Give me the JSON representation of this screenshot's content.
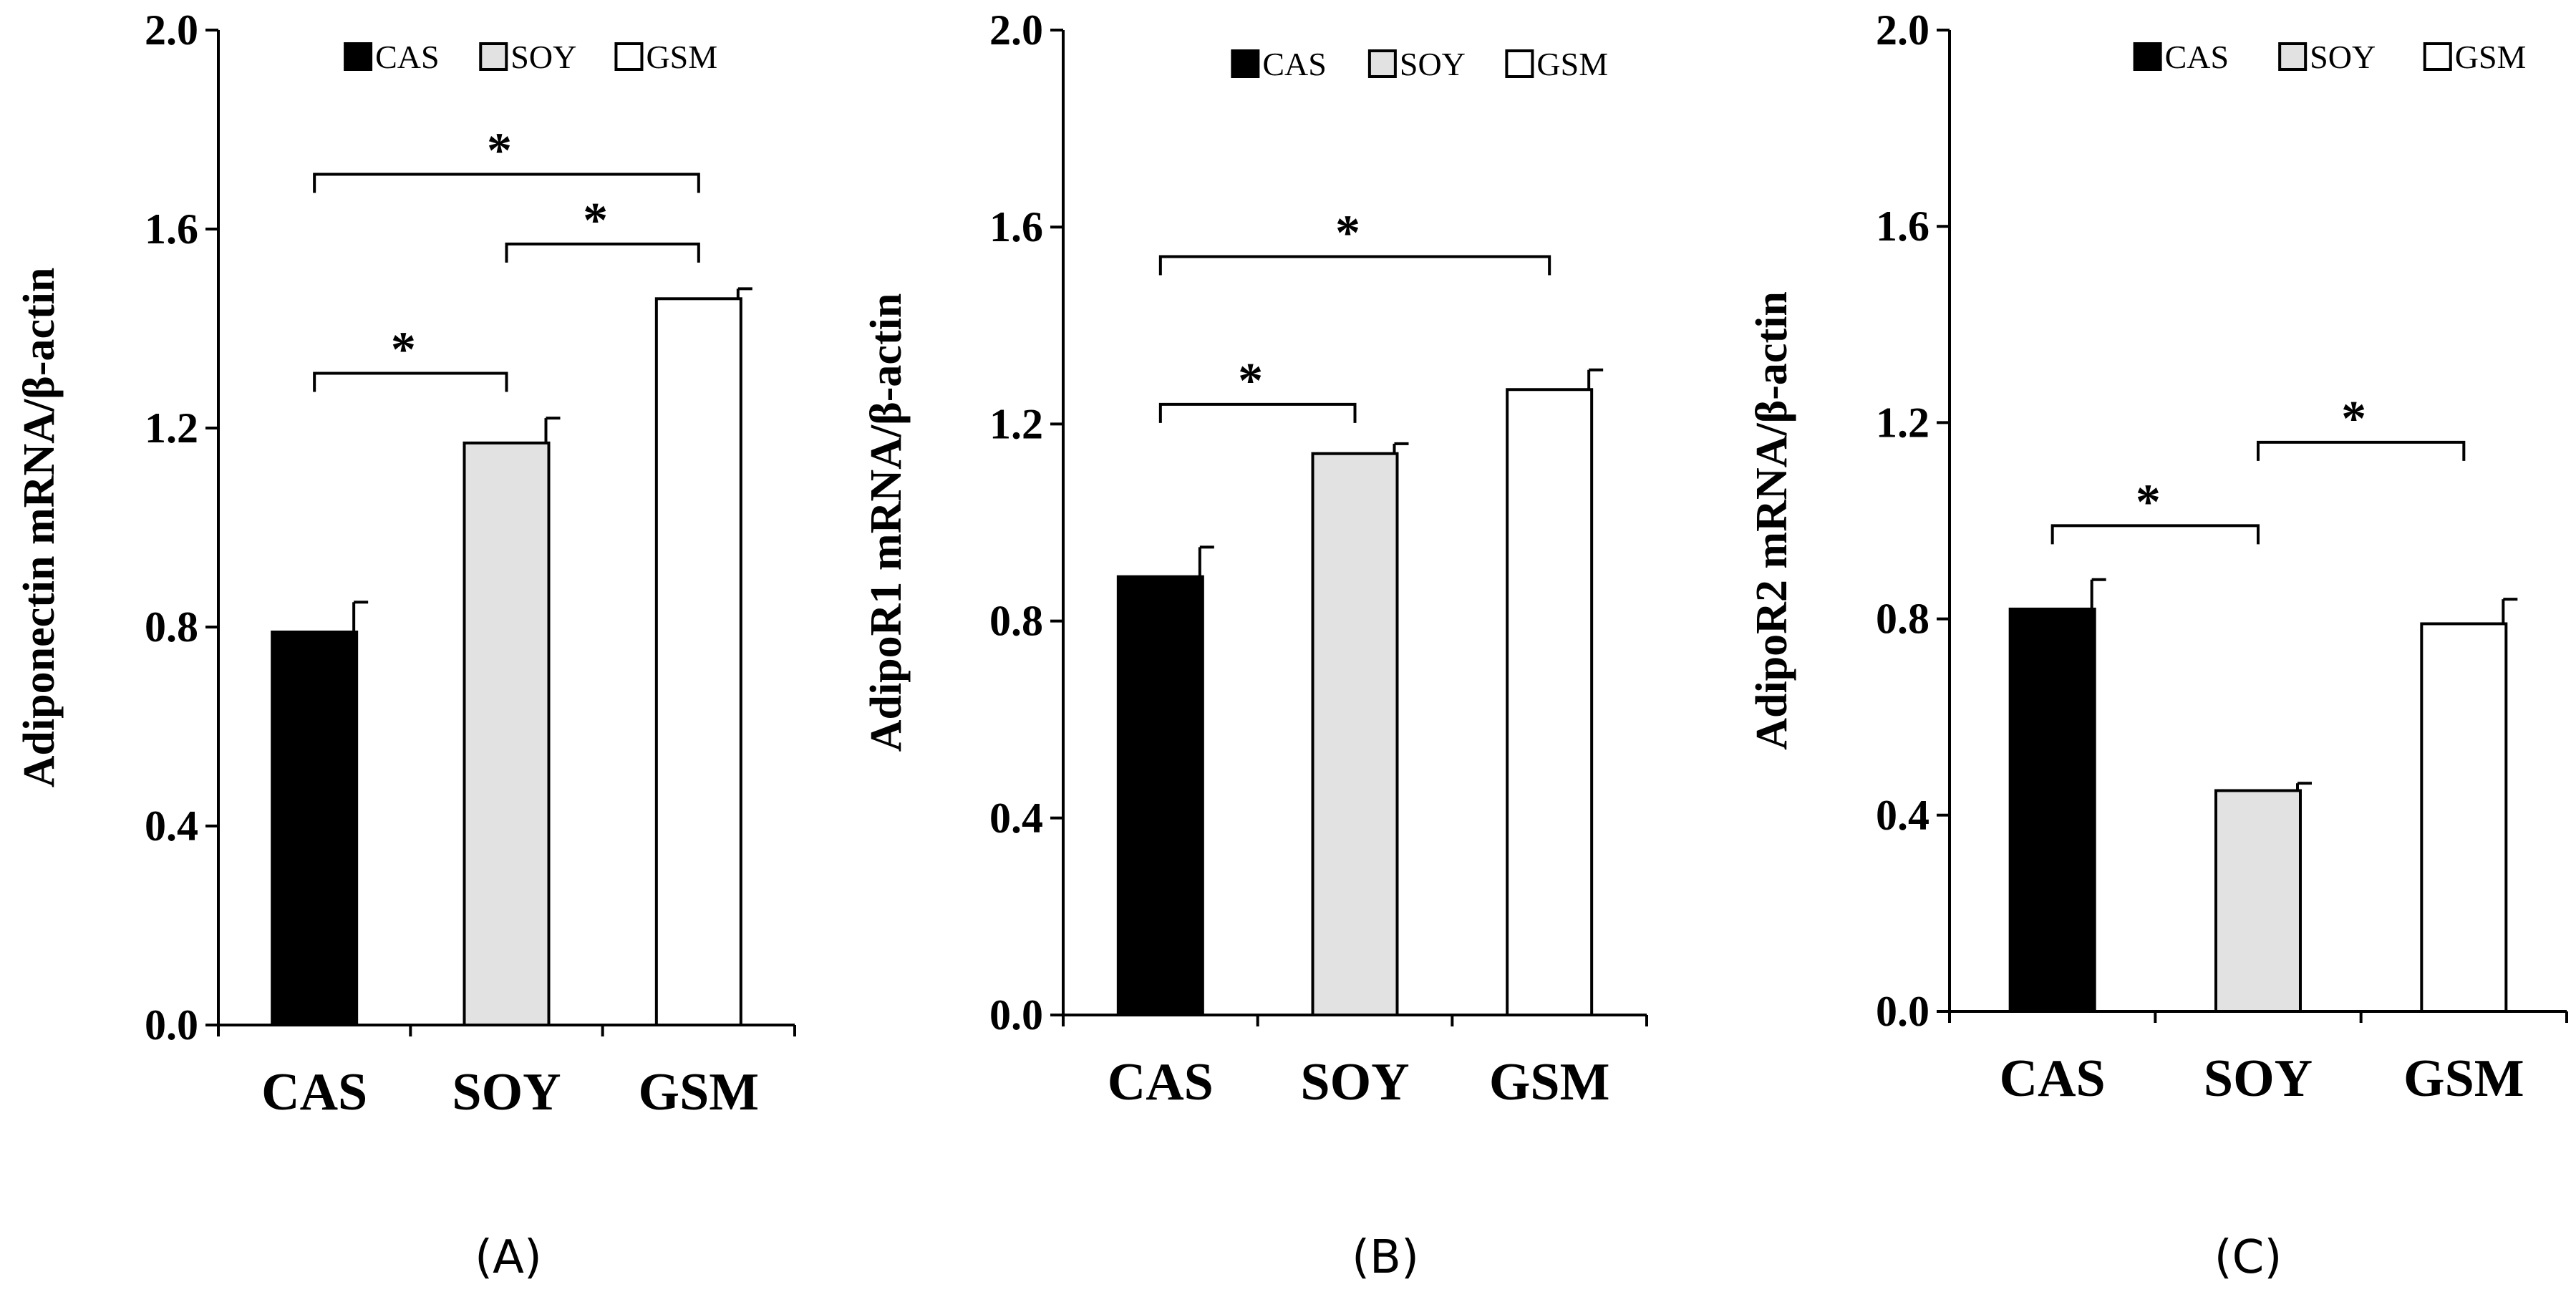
{
  "chart_data": [
    {
      "type": "bar",
      "panel": "(A)",
      "categories": [
        "CAS",
        "SOY",
        "GSM"
      ],
      "values": [
        0.79,
        1.17,
        1.46
      ],
      "errors": [
        0.06,
        0.05,
        0.02
      ],
      "ylabel": "Adiponectin mRNA/β-actin",
      "ylim": [
        0,
        2.0
      ],
      "yticks": [
        "0.0",
        "0.4",
        "0.8",
        "1.2",
        "1.6",
        "2.0"
      ],
      "legend": [
        "CAS",
        "SOY",
        "GSM"
      ],
      "significance": [
        {
          "from": 0,
          "to": 2,
          "label": "*",
          "y": 1.71
        },
        {
          "from": 1,
          "to": 2,
          "label": "*",
          "y": 1.57
        },
        {
          "from": 0,
          "to": 1,
          "label": "*",
          "y": 1.31
        }
      ]
    },
    {
      "type": "bar",
      "panel": "(B)",
      "categories": [
        "CAS",
        "SOY",
        "GSM"
      ],
      "values": [
        0.89,
        1.14,
        1.27
      ],
      "errors": [
        0.06,
        0.02,
        0.04
      ],
      "ylabel": "AdipoR1 mRNA/β-actin",
      "ylim": [
        0,
        2.0
      ],
      "yticks": [
        "0.0",
        "0.4",
        "0.8",
        "1.2",
        "1.6",
        "2.0"
      ],
      "legend": [
        "CAS",
        "SOY",
        "GSM"
      ],
      "significance": [
        {
          "from": 0,
          "to": 2,
          "label": "*",
          "y": 1.54
        },
        {
          "from": 0,
          "to": 1,
          "label": "*",
          "y": 1.24
        }
      ]
    },
    {
      "type": "bar",
      "panel": "(C)",
      "categories": [
        "CAS",
        "SOY",
        "GSM"
      ],
      "values": [
        0.82,
        0.45,
        0.79
      ],
      "errors": [
        0.06,
        0.015,
        0.05
      ],
      "ylabel": "AdipoR2 mRNA/β-actin",
      "ylim": [
        0,
        2.0
      ],
      "yticks": [
        "0.0",
        "0.4",
        "0.8",
        "1.2",
        "1.6",
        "2.0"
      ],
      "legend": [
        "CAS",
        "SOY",
        "GSM"
      ],
      "significance": [
        {
          "from": 1,
          "to": 2,
          "label": "*",
          "y": 1.16
        },
        {
          "from": 0,
          "to": 1,
          "label": "*",
          "y": 0.99
        }
      ]
    }
  ],
  "colors": {
    "CAS": "#000000",
    "SOY": "#e2e2e2",
    "GSM": "#ffffff",
    "stroke": "#000000"
  }
}
